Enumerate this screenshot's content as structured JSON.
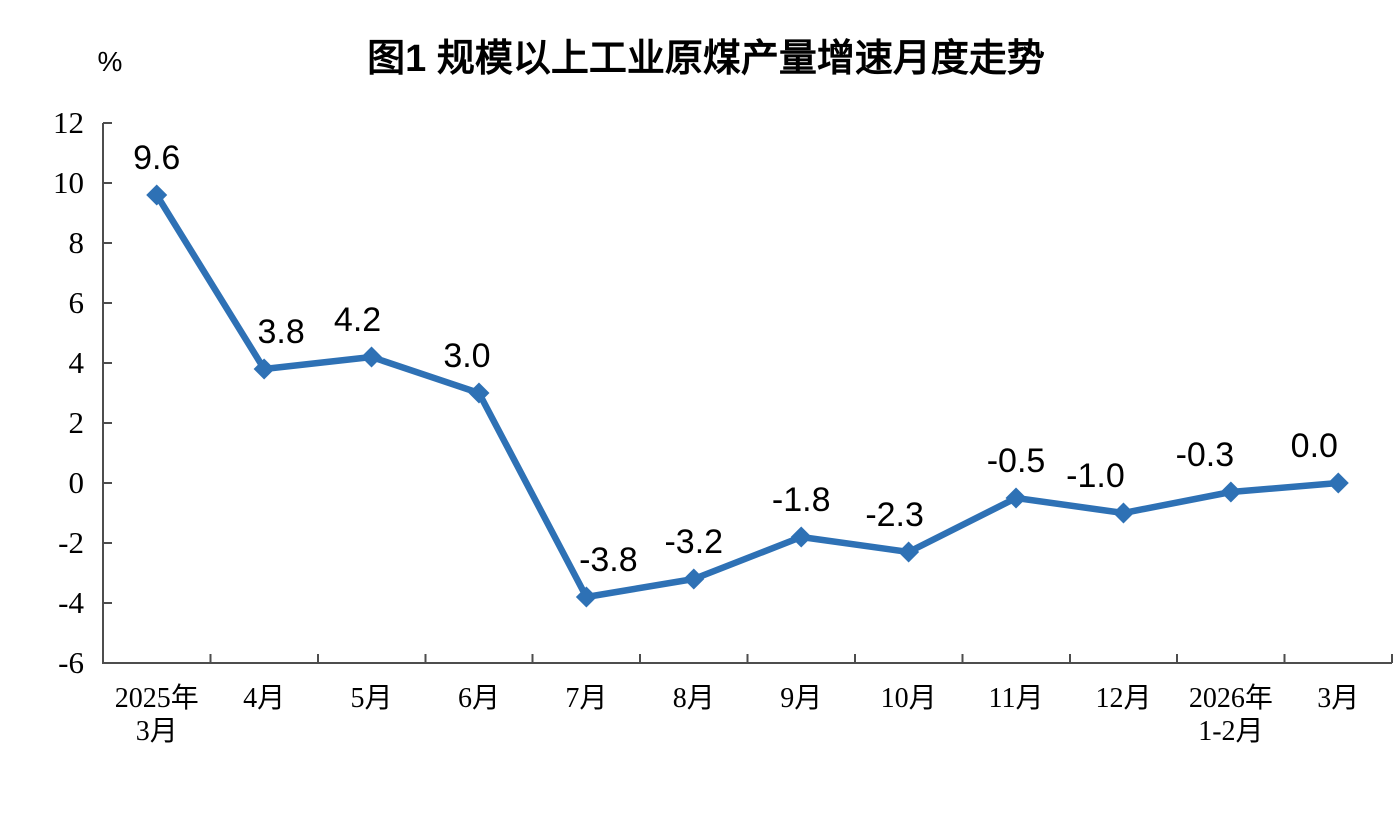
{
  "page": {
    "background": "#ffffff"
  },
  "chart_data": {
    "type": "line",
    "title": "图1 规模以上工业原煤产量增速月度走势",
    "unit_label": "%",
    "xlabel": "",
    "ylabel": "%",
    "categories": [
      [
        "2025年",
        "3月"
      ],
      [
        "4月"
      ],
      [
        "5月"
      ],
      [
        "6月"
      ],
      [
        "7月"
      ],
      [
        "8月"
      ],
      [
        "9月"
      ],
      [
        "10月"
      ],
      [
        "11月"
      ],
      [
        "12月"
      ],
      [
        "2026年",
        "1-2月"
      ],
      [
        "3月"
      ]
    ],
    "values": [
      9.6,
      3.8,
      4.2,
      3.0,
      -3.8,
      -3.2,
      -1.8,
      -2.3,
      -0.5,
      -1.0,
      -0.3,
      0.0
    ],
    "point_labels": [
      "9.6",
      "3.8",
      "4.2",
      "3.0",
      "-3.8",
      "-3.2",
      "-1.8",
      "-2.3",
      "-0.5",
      "-1.0",
      "-0.3",
      "0.0"
    ],
    "yticks": [
      12,
      10,
      8,
      6,
      4,
      2,
      0,
      -2,
      -4,
      -6
    ],
    "ylim": [
      -6,
      12
    ],
    "grid": false,
    "legend": "none",
    "marker": "diamond",
    "line_color": "#2E71B5",
    "axis_color": "#4d4d4d",
    "label_color": "#000000",
    "label_dx": [
      0,
      17,
      -14,
      -12,
      22,
      0,
      0,
      -14,
      0,
      -28,
      -26,
      -24
    ]
  }
}
